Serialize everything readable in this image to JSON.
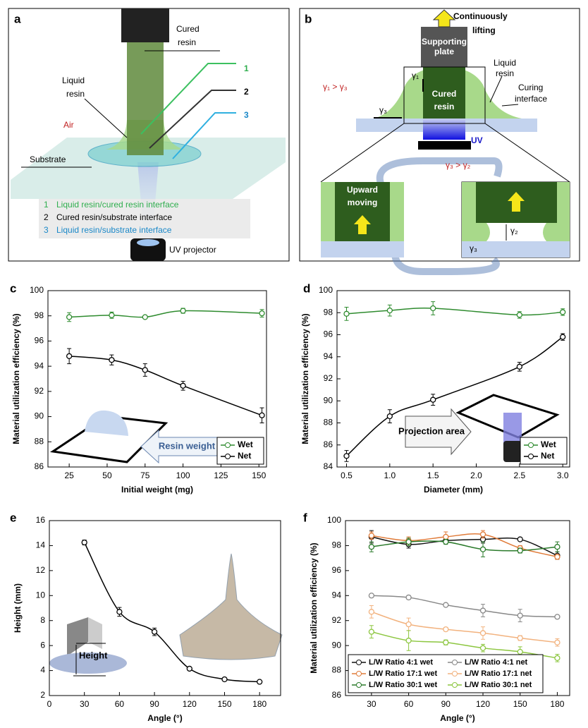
{
  "diagrams": {
    "a": {
      "panel": "a",
      "cured_resin": [
        "Cured",
        "resin"
      ],
      "liquid_resin": [
        "Liquid",
        "resin"
      ],
      "air": "Air",
      "substrate": "Substrate",
      "pointers": [
        "1",
        "2",
        "3"
      ],
      "legend": [
        {
          "num": "1",
          "text": "Liquid resin/cured resin interface"
        },
        {
          "num": "2",
          "text": "Cured resin/substrate interface"
        },
        {
          "num": "3",
          "text": "Liquid resin/substrate interface"
        }
      ],
      "uv_projector": "UV projector"
    },
    "b": {
      "panel": "b",
      "lifting": [
        "Continuously",
        "lifting"
      ],
      "plate": [
        "Supporting",
        "plate"
      ],
      "liquid_resin": [
        "Liquid",
        "resin"
      ],
      "relation_top": "γ₁ > γ₃",
      "gamma1": "γ₁",
      "cured_resin": [
        "Cured",
        "resin"
      ],
      "curing_interface": [
        "Curing",
        "interface"
      ],
      "gamma3_top": "γ₃",
      "uv": "UV",
      "relation_mid": "γ₃ > γ₂",
      "upward": [
        "Upward",
        "moving"
      ],
      "gamma2": "γ₂",
      "gamma3_bottom": "γ₃"
    }
  },
  "chart_data": [
    {
      "panel": "c",
      "type": "line",
      "xlabel": "Initial weight (mg)",
      "ylabel": "Material utilization efficiency (%)",
      "annotation": "Resin weight",
      "x": [
        25,
        53,
        75,
        100,
        152
      ],
      "xlim": [
        11,
        155
      ],
      "ylim": [
        86,
        100
      ],
      "xticks": [
        25,
        50,
        75,
        100,
        125,
        150
      ],
      "yticks": [
        86,
        88,
        90,
        92,
        94,
        96,
        98,
        100
      ],
      "legend": "lower right",
      "series": [
        {
          "name": "Wet",
          "color": "#2e8b2e",
          "values": [
            97.9,
            98.05,
            97.9,
            98.4,
            98.2
          ],
          "errors": [
            0.35,
            0.25,
            0.1,
            0.2,
            0.3
          ]
        },
        {
          "name": "Net",
          "color": "#000000",
          "values": [
            94.8,
            94.5,
            93.7,
            92.45,
            90.1
          ],
          "errors": [
            0.6,
            0.4,
            0.5,
            0.35,
            0.6
          ]
        }
      ]
    },
    {
      "panel": "d",
      "type": "line",
      "xlabel": "Diameter (mm)",
      "ylabel": "Material utilization efficiency (%)",
      "annotation": "Projection area",
      "x": [
        0.5,
        1,
        1.5,
        2.5,
        3
      ],
      "xlim": [
        0.39,
        3.08
      ],
      "ylim": [
        84,
        100
      ],
      "xticks": [
        0.5,
        {
          "value": 1,
          "label": "1.0"
        },
        1.5,
        {
          "value": 2,
          "label": "2.0"
        },
        2.5,
        {
          "value": 3,
          "label": "3.0"
        }
      ],
      "yticks": [
        84,
        86,
        88,
        90,
        92,
        94,
        96,
        98,
        100
      ],
      "legend": "lower right",
      "series": [
        {
          "name": "Wet",
          "color": "#2e8b2e",
          "values": [
            97.9,
            98.2,
            98.4,
            97.8,
            98.05
          ],
          "errors": [
            0.6,
            0.5,
            0.6,
            0.3,
            0.3
          ]
        },
        {
          "name": "Net",
          "color": "#000000",
          "values": [
            85.0,
            88.6,
            90.1,
            93.1,
            95.8
          ],
          "errors": [
            0.5,
            0.6,
            0.5,
            0.4,
            0.3
          ]
        }
      ]
    },
    {
      "panel": "e",
      "type": "line",
      "xlabel": "Angle (°)",
      "ylabel": "Height (mm)",
      "annotation": "Height",
      "x": [
        30,
        60,
        90,
        120,
        150,
        180
      ],
      "xlim": [
        0,
        198
      ],
      "ylim": [
        2,
        16
      ],
      "xticks": [
        0,
        30,
        60,
        90,
        120,
        150,
        180
      ],
      "yticks": [
        2,
        4,
        6,
        8,
        10,
        12,
        14,
        16
      ],
      "series": [
        {
          "color": "#000000",
          "values": [
            14.25,
            8.7,
            7.1,
            4.15,
            3.3,
            3.1
          ],
          "errors": [
            0.2,
            0.35,
            0.3,
            0.1,
            0.1,
            0.1
          ]
        }
      ]
    },
    {
      "panel": "f",
      "type": "line",
      "xlabel": "Angle (°)",
      "ylabel": "Material utilization efficiency (%)",
      "x": [
        30,
        60,
        90,
        120,
        150,
        180
      ],
      "xlim": [
        9,
        190
      ],
      "ylim": [
        86,
        100
      ],
      "xticks": [
        30,
        60,
        90,
        120,
        150,
        180
      ],
      "yticks": [
        86,
        88,
        90,
        92,
        94,
        96,
        98,
        100
      ],
      "legend": "lower left",
      "series": [
        {
          "name": "L/W Ratio 4:1 wet",
          "color": "#111111",
          "values": [
            98.7,
            98.1,
            98.4,
            98.5,
            98.5,
            97.2
          ],
          "errors": [
            0.5,
            0.3,
            0.2,
            0.3,
            0.1,
            0.3
          ]
        },
        {
          "name": "L/W Ratio 17:1 wet",
          "color": "#e07b39",
          "values": [
            98.8,
            98.4,
            98.7,
            98.9,
            97.8,
            97.1
          ],
          "errors": [
            0.3,
            0.3,
            0.4,
            0.3,
            0.2,
            0.2
          ]
        },
        {
          "name": "L/W Ratio 30:1 wet",
          "color": "#2a7a2a",
          "values": [
            97.9,
            98.3,
            98.3,
            97.7,
            97.6,
            97.9
          ],
          "errors": [
            0.4,
            0.3,
            0.2,
            0.6,
            0.2,
            0.4
          ]
        },
        {
          "name": "L/W Ratio 4:1 net",
          "color": "#888888",
          "values": [
            94.0,
            93.85,
            93.25,
            92.8,
            92.4,
            92.3
          ],
          "errors": [
            0.1,
            0.15,
            0.1,
            0.5,
            0.5,
            0.1
          ]
        },
        {
          "name": "L/W Ratio 17:1 net",
          "color": "#f2b27e",
          "values": [
            92.7,
            91.7,
            91.3,
            91.0,
            90.6,
            90.25
          ],
          "errors": [
            0.5,
            0.5,
            0.15,
            0.5,
            0.2,
            0.3
          ]
        },
        {
          "name": "L/W Ratio 30:1 net",
          "color": "#8cc63f",
          "values": [
            91.1,
            90.4,
            90.25,
            89.8,
            89.5,
            89.0
          ],
          "errors": [
            0.5,
            0.8,
            0.2,
            0.3,
            0.4,
            0.3
          ]
        }
      ]
    }
  ]
}
